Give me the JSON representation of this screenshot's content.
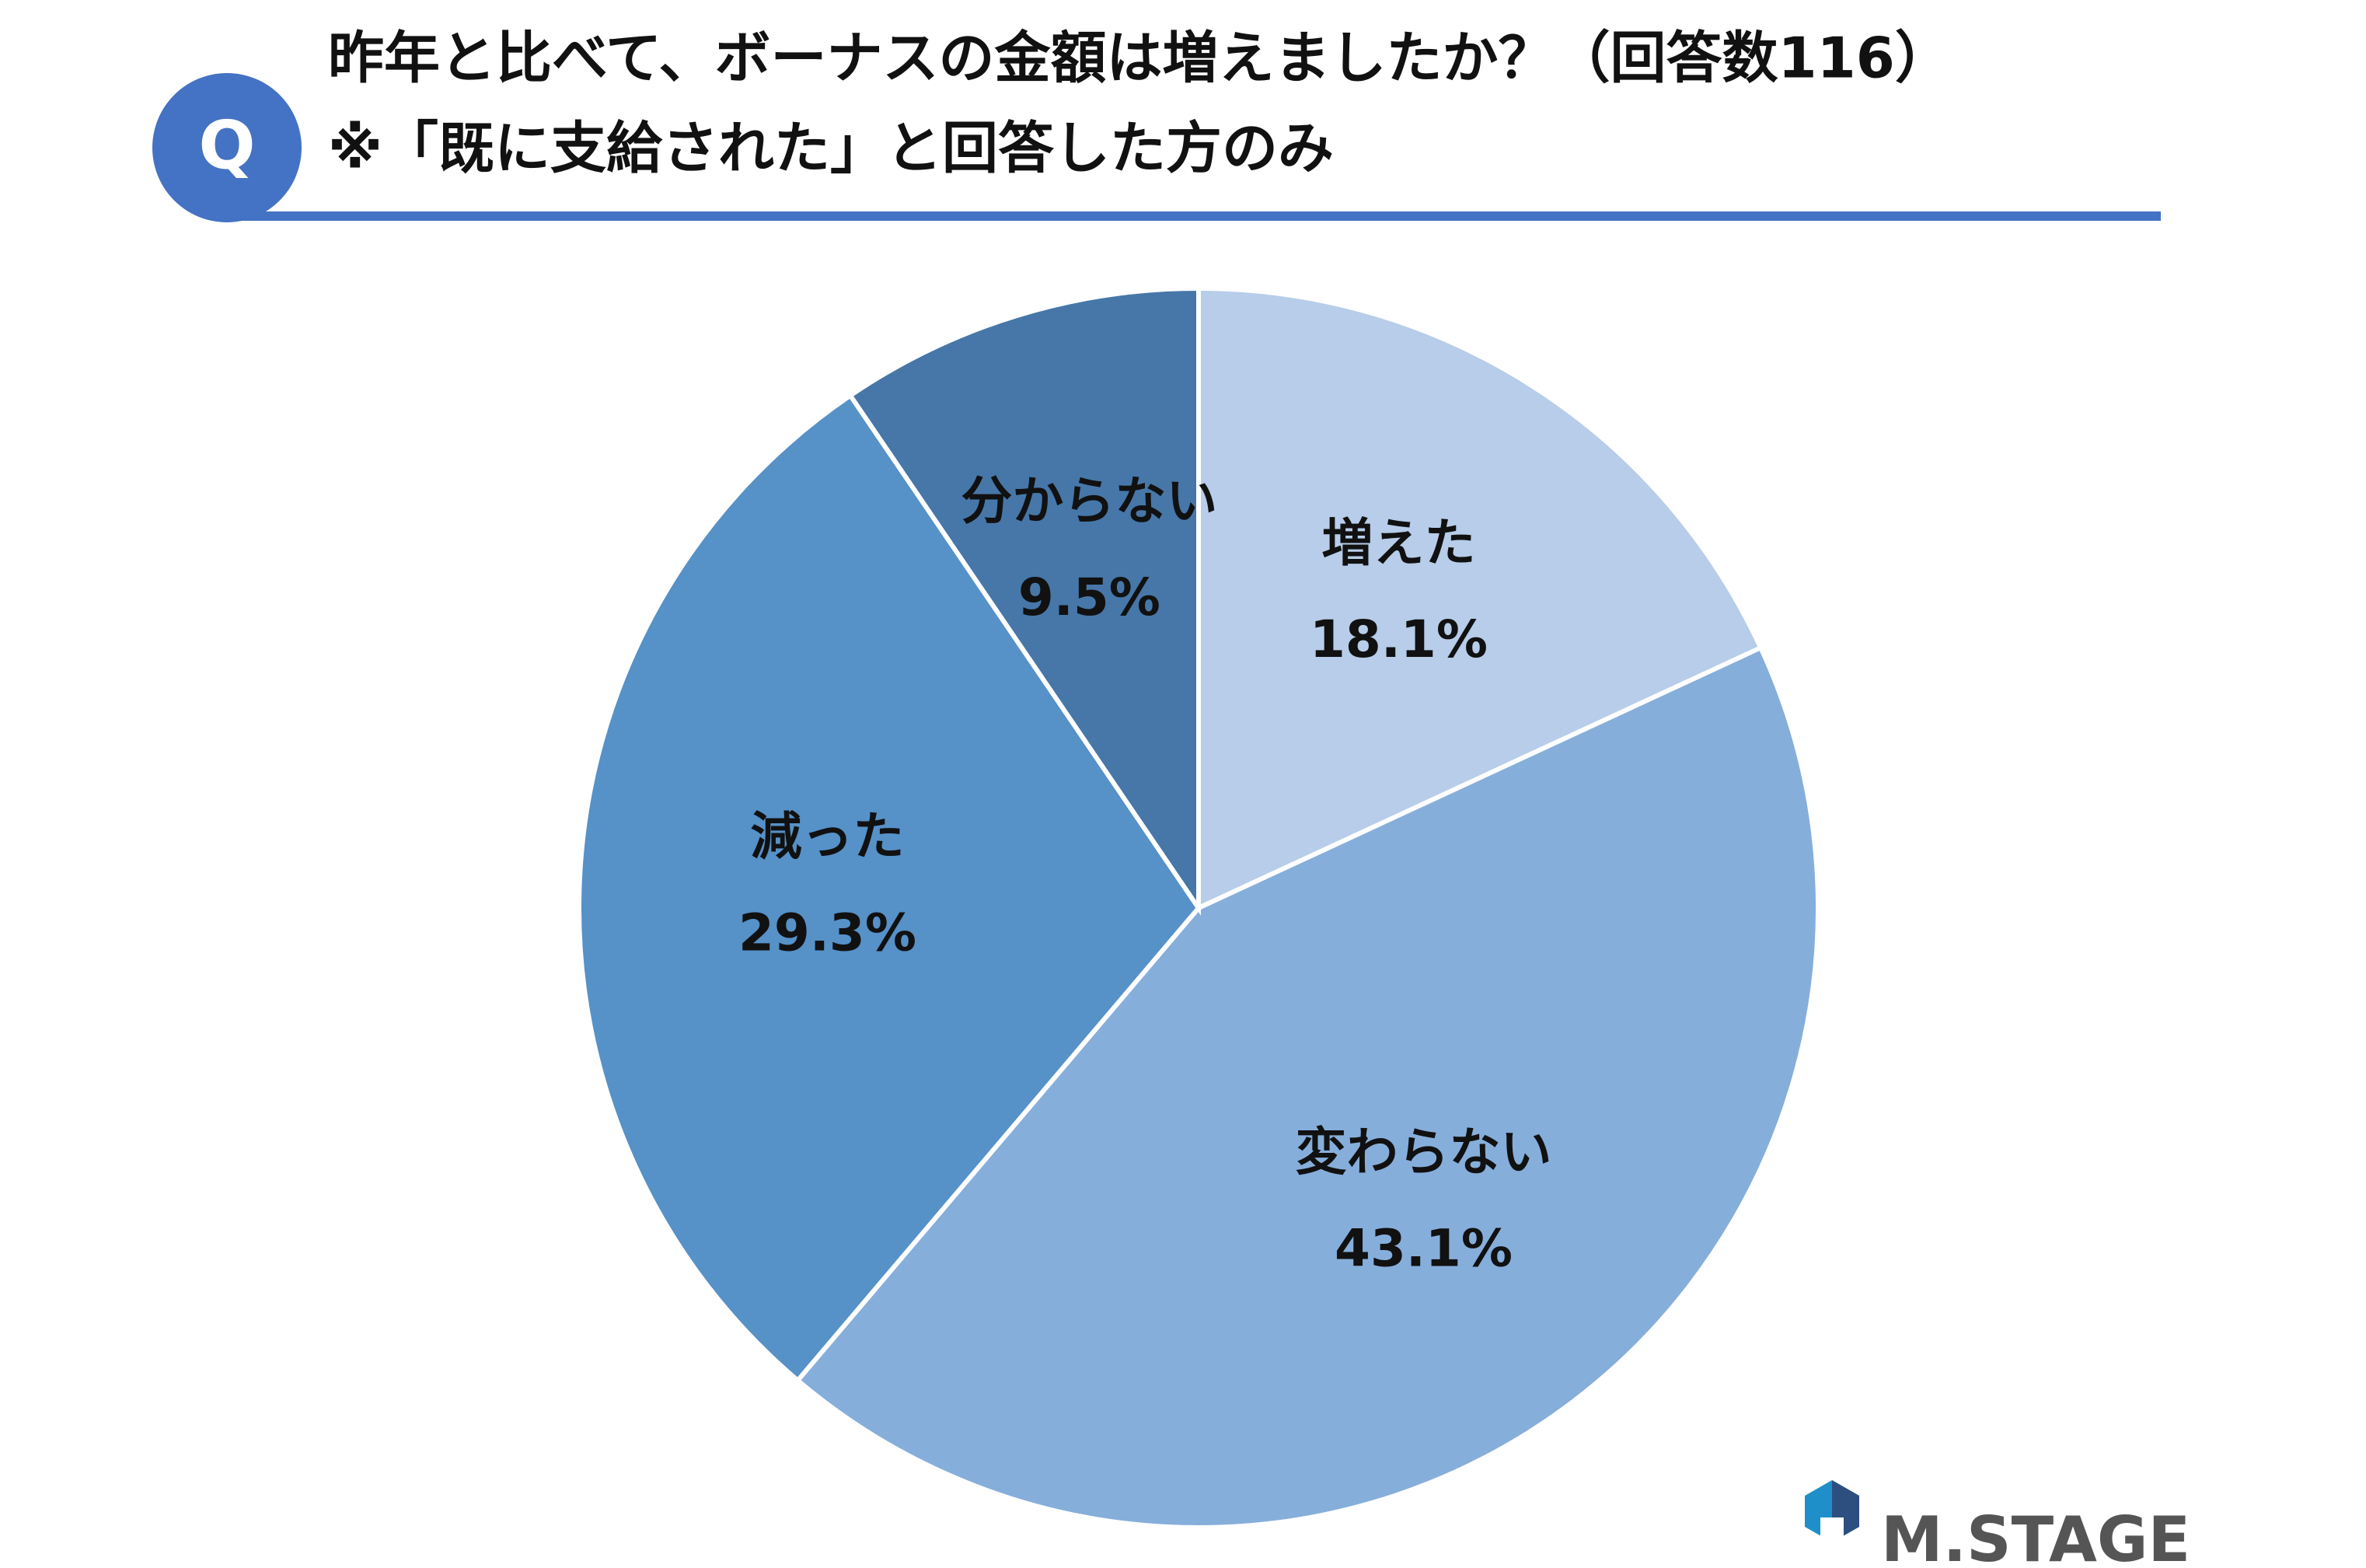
{
  "badge": "Q",
  "chart_data": {
    "type": "pie",
    "title": "昨年と比べて、ボーナスの金額は増えましたか？（回答数116）",
    "subtitle": "※「既に支給された」と回答した方のみ",
    "categories": [
      "増えた",
      "変わらない",
      "減った",
      "分からない"
    ],
    "values": [
      18.1,
      43.1,
      29.3,
      9.5
    ],
    "value_labels": [
      "18.1%",
      "43.1%",
      "29.3%",
      "9.5%"
    ],
    "colors": [
      "#b7cde9",
      "#86aedb",
      "#5691c8",
      "#4677a8"
    ]
  },
  "logo": "M.STAGE"
}
